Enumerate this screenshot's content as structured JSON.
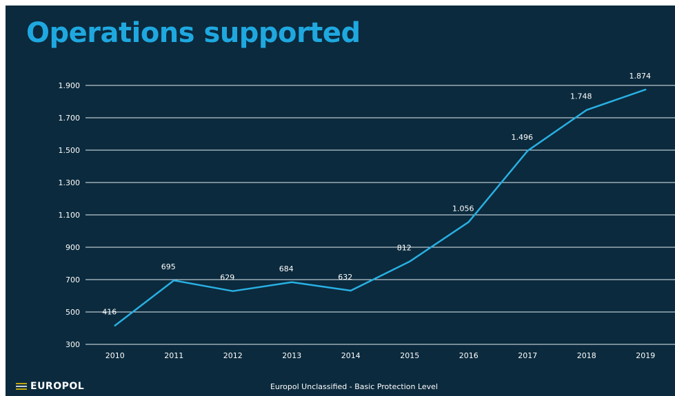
{
  "slide": {
    "title": "Operations supported",
    "footer_text": "Europol Unclassified - Basic Protection Level",
    "logo_text": "EUROPOL"
  },
  "colors": {
    "background": "#0b2a3d",
    "title": "#1fa8e0",
    "line": "#29b0e3",
    "grid": "#e6eef3",
    "text": "#ffffff"
  },
  "chart_data": {
    "type": "line",
    "title": "",
    "xlabel": "",
    "ylabel": "",
    "x": [
      "2010",
      "2011",
      "2012",
      "2013",
      "2014",
      "2015",
      "2016",
      "2017",
      "2018",
      "2019"
    ],
    "series": [
      {
        "values": [
          416,
          695,
          629,
          684,
          632,
          812,
          1056,
          1496,
          1748,
          1874
        ],
        "labels": [
          "416",
          "695",
          "629",
          "684",
          "632",
          "812",
          "1.056",
          "1.496",
          "1.748",
          "1.874"
        ]
      }
    ],
    "ylim": [
      300,
      1900
    ],
    "yticks": [
      300,
      500,
      700,
      900,
      1100,
      1300,
      1500,
      1700,
      1900
    ],
    "ytick_labels": [
      "300",
      "500",
      "700",
      "900",
      "1.100",
      "1.300",
      "1.500",
      "1.700",
      "1.900"
    ],
    "grid": true,
    "legend": "none"
  }
}
